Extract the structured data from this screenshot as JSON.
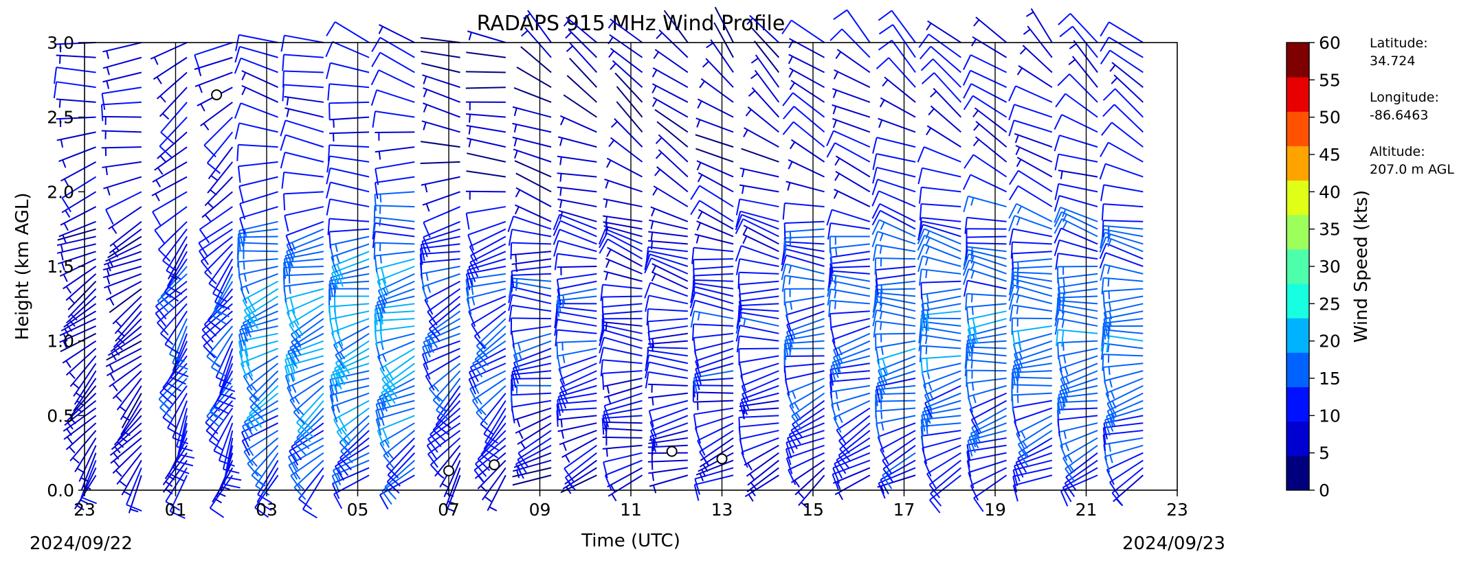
{
  "chart_data": {
    "type": "wind-barb",
    "title": "RADAPS 915 MHz Wind Profile",
    "xlabel": "Time (UTC)",
    "ylabel": "Height (km AGL)",
    "x_ticks": [
      "23",
      "01",
      "03",
      "05",
      "07",
      "09",
      "11",
      "13",
      "15",
      "17",
      "19",
      "21",
      "23"
    ],
    "x_range_hours": [
      0,
      24
    ],
    "date_start": "2024/09/22",
    "date_end": "2024/09/23",
    "y_ticks": [
      "0.0",
      "0.5",
      "1.0",
      "1.5",
      "2.0",
      "2.5",
      "3.0"
    ],
    "ylim": [
      0.0,
      3.0
    ],
    "colorbar": {
      "label": "Wind Speed (kts)",
      "ticks": [
        "0",
        "5",
        "10",
        "15",
        "20",
        "25",
        "30",
        "35",
        "40",
        "45",
        "50",
        "55",
        "60"
      ],
      "range": [
        0,
        60
      ],
      "colors": [
        "#00007f",
        "#0000d1",
        "#0011ff",
        "#0062ff",
        "#00b2ff",
        "#17ffe0",
        "#4dffaa",
        "#9cff5b",
        "#e0ff17",
        "#ffa300",
        "#ff5200",
        "#e80000",
        "#7f0000"
      ]
    },
    "station": {
      "latitude_label": "Latitude:",
      "latitude": "34.724",
      "longitude_label": "Longitude:",
      "longitude": "-86.6463",
      "altitude_label": "Altitude:",
      "altitude": "207.0 m AGL"
    },
    "profile_hours": [
      0.25,
      1.25,
      2.25,
      3.25,
      4.25,
      5.25,
      6.25,
      7.25,
      8.25,
      9.25,
      10.25,
      11.25,
      12.25,
      13.25,
      14.25,
      15.25,
      16.25,
      17.25,
      18.25,
      19.25,
      20.25,
      21.25,
      22.25,
      23.25
    ],
    "segment_boundaries_hours": [
      2,
      4,
      6,
      8,
      10,
      12,
      14,
      16,
      18,
      20,
      22
    ],
    "level_heights_km": [
      0.1,
      0.15,
      0.2,
      0.25,
      0.3,
      0.35,
      0.4,
      0.45,
      0.5,
      0.55,
      0.6,
      0.65,
      0.7,
      0.75,
      0.8,
      0.85,
      0.9,
      0.95,
      1.0,
      1.05,
      1.1,
      1.15,
      1.2,
      1.25,
      1.3,
      1.35,
      1.4,
      1.45,
      1.5,
      1.55,
      1.6,
      1.65,
      1.7,
      1.75,
      1.8,
      1.9,
      2.0,
      2.1,
      2.2,
      2.3,
      2.4,
      2.5,
      2.6,
      2.7,
      2.8,
      2.9,
      3.0
    ],
    "wind_regimes": [
      {
        "hours": [
          0,
          2
        ],
        "dir_low_deg": 330,
        "dir_high_deg": 270,
        "speed_low_kts": 8,
        "speed_high_kts": 7
      },
      {
        "hours": [
          2,
          4
        ],
        "dir_low_deg": 340,
        "dir_high_deg": 300,
        "speed_low_kts": 9,
        "speed_high_kts": 14
      },
      {
        "hours": [
          4,
          6
        ],
        "dir_low_deg": 320,
        "dir_high_deg": 250,
        "speed_low_kts": 12,
        "speed_high_kts": 20
      },
      {
        "hours": [
          6,
          8
        ],
        "dir_low_deg": 310,
        "dir_high_deg": 250,
        "speed_low_kts": 11,
        "speed_high_kts": 21
      },
      {
        "hours": [
          8,
          10
        ],
        "dir_low_deg": 330,
        "dir_high_deg": 250,
        "speed_low_kts": 6,
        "speed_high_kts": 16
      },
      {
        "hours": [
          10,
          12
        ],
        "dir_low_deg": 300,
        "dir_high_deg": 230,
        "speed_low_kts": 5,
        "speed_high_kts": 14
      },
      {
        "hours": [
          12,
          14
        ],
        "dir_low_deg": 290,
        "dir_high_deg": 220,
        "speed_low_kts": 6,
        "speed_high_kts": 12
      },
      {
        "hours": [
          14,
          16
        ],
        "dir_low_deg": 300,
        "dir_high_deg": 220,
        "speed_low_kts": 7,
        "speed_high_kts": 13
      },
      {
        "hours": [
          16,
          18
        ],
        "dir_low_deg": 310,
        "dir_high_deg": 225,
        "speed_low_kts": 9,
        "speed_high_kts": 16
      },
      {
        "hours": [
          18,
          20
        ],
        "dir_low_deg": 300,
        "dir_high_deg": 225,
        "speed_low_kts": 10,
        "speed_high_kts": 18
      },
      {
        "hours": [
          20,
          22
        ],
        "dir_low_deg": 300,
        "dir_high_deg": 225,
        "speed_low_kts": 10,
        "speed_high_kts": 18
      },
      {
        "hours": [
          22,
          24
        ],
        "dir_low_deg": 300,
        "dir_high_deg": 225,
        "speed_low_kts": 11,
        "speed_high_kts": 18
      }
    ],
    "calm_points": [
      {
        "hour": 2.9,
        "height_km": 2.65
      },
      {
        "hour": 8.0,
        "height_km": 0.13
      },
      {
        "hour": 9.0,
        "height_km": 0.17
      },
      {
        "hour": 12.9,
        "height_km": 0.26
      },
      {
        "hour": 14.0,
        "height_km": 0.21
      }
    ],
    "grid": false,
    "legend": "colorbar-right"
  }
}
